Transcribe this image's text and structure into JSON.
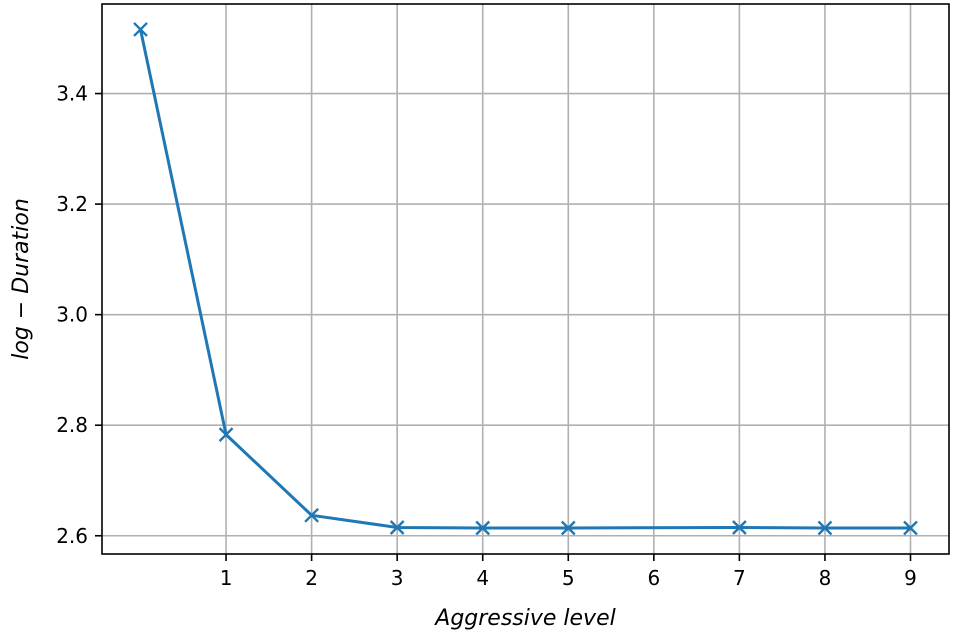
{
  "chart_data": {
    "type": "line",
    "title": "",
    "xlabel": "Aggressive level",
    "ylabel": "log − Duration",
    "x_ticks": [
      1,
      2,
      3,
      4,
      5,
      6,
      7,
      8,
      9
    ],
    "y_ticks": [
      2.6,
      2.8,
      3.0,
      3.2,
      3.4
    ],
    "y_tick_labels": [
      "2.6",
      "2.8",
      "3.0",
      "3.2",
      "3.4"
    ],
    "xlim": [
      -0.45,
      9.45
    ],
    "ylim": [
      2.567,
      3.562
    ],
    "grid": true,
    "series": [
      {
        "name": "log-duration",
        "color": "#1f77b4",
        "marker": "x",
        "points": [
          {
            "x": 0,
            "y": 3.516
          },
          {
            "x": 1,
            "y": 2.783
          },
          {
            "x": 2,
            "y": 2.637
          },
          {
            "x": 3,
            "y": 2.615
          },
          {
            "x": 4,
            "y": 2.614
          },
          {
            "x": 5,
            "y": 2.614
          },
          {
            "x": 7,
            "y": 2.615
          },
          {
            "x": 8,
            "y": 2.614
          },
          {
            "x": 9,
            "y": 2.614
          }
        ]
      }
    ]
  }
}
